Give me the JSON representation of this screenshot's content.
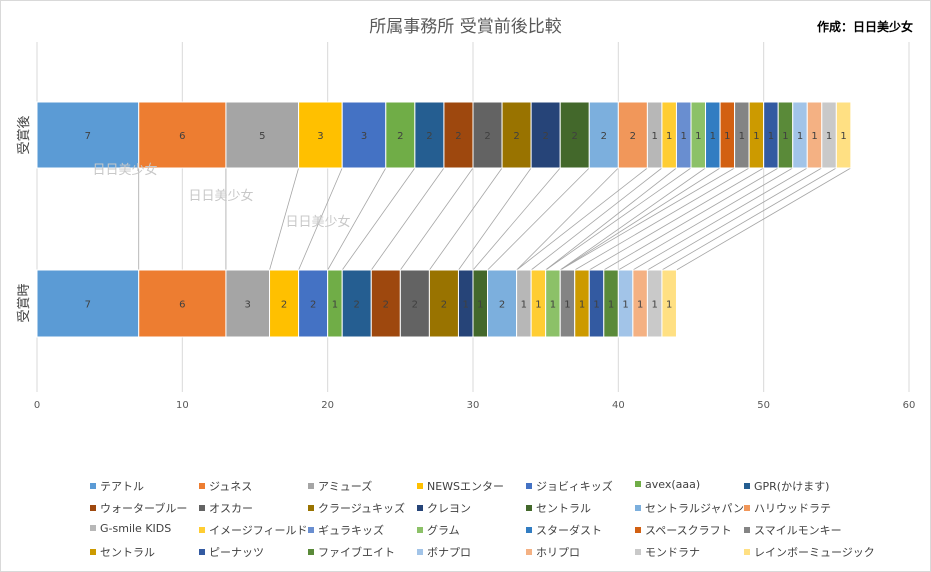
{
  "title": "所属事務所 受賞前後比較",
  "author_label": "作成：日日美少女",
  "watermarks": [
    "日日美少女",
    "日日美少女",
    "日日美少女"
  ],
  "chart_data": {
    "type": "bar",
    "orientation": "horizontal",
    "stacked": true,
    "categories": [
      "受賞後",
      "受賞時"
    ],
    "xlim": [
      0,
      60
    ],
    "xticks": [
      0,
      10,
      20,
      30,
      40,
      50,
      60
    ],
    "grid": true,
    "legend_position": "bottom",
    "series": [
      {
        "name": "テアトル",
        "color": "#5b9bd5",
        "values": [
          7,
          7
        ]
      },
      {
        "name": "ジュネス",
        "color": "#ed7d31",
        "values": [
          6,
          6
        ]
      },
      {
        "name": "アミューズ",
        "color": "#a5a5a5",
        "values": [
          5,
          3
        ]
      },
      {
        "name": "NEWSエンター",
        "color": "#ffc000",
        "values": [
          3,
          2
        ]
      },
      {
        "name": "ジョビィキッズ",
        "color": "#4472c4",
        "values": [
          3,
          2
        ]
      },
      {
        "name": "avex(aaa)",
        "color": "#70ad47",
        "values": [
          2,
          1
        ]
      },
      {
        "name": "GPR(かけます)",
        "color": "#255e91",
        "values": [
          2,
          2
        ]
      },
      {
        "name": "ウォーターブルー",
        "color": "#9e480e",
        "values": [
          2,
          2
        ]
      },
      {
        "name": "オスカー",
        "color": "#636363",
        "values": [
          2,
          2
        ]
      },
      {
        "name": "クラージュキッズ",
        "color": "#997300",
        "values": [
          2,
          2
        ]
      },
      {
        "name": "クレヨン",
        "color": "#264478",
        "values": [
          2,
          1
        ]
      },
      {
        "name": "セントラル",
        "color": "#43682b",
        "values": [
          2,
          1
        ]
      },
      {
        "name": "セントラルジャパン",
        "color": "#7cafdd",
        "values": [
          2,
          2
        ]
      },
      {
        "name": "ハリウッドラテ",
        "color": "#f1975a",
        "values": [
          2,
          0
        ]
      },
      {
        "name": "G-smile KIDS",
        "color": "#b7b7b7",
        "values": [
          1,
          1
        ]
      },
      {
        "name": "イメージフィールド",
        "color": "#ffcd33",
        "values": [
          1,
          1
        ]
      },
      {
        "name": "ギュラキッズ",
        "color": "#698ed0",
        "values": [
          1,
          0
        ]
      },
      {
        "name": "グラム",
        "color": "#8cc168",
        "values": [
          1,
          1
        ]
      },
      {
        "name": "スターダスト",
        "color": "#327dc2",
        "values": [
          1,
          0
        ]
      },
      {
        "name": "スペースクラフト",
        "color": "#d26012",
        "values": [
          1,
          0
        ]
      },
      {
        "name": "スマイルモンキー",
        "color": "#848484",
        "values": [
          1,
          1
        ]
      },
      {
        "name": "セントラル",
        "color": "#cc9a00",
        "values": [
          1,
          1
        ]
      },
      {
        "name": "ピーナッツ",
        "color": "#335aa1",
        "values": [
          1,
          1
        ]
      },
      {
        "name": "ファイブエイト",
        "color": "#5a8a39",
        "values": [
          1,
          1
        ]
      },
      {
        "name": "ボナプロ",
        "color": "#a2c4e8",
        "values": [
          1,
          1
        ]
      },
      {
        "name": "ホリプロ",
        "color": "#f4b183",
        "values": [
          1,
          1
        ]
      },
      {
        "name": "モンドラナ",
        "color": "#c9c9c9",
        "values": [
          1,
          1
        ]
      },
      {
        "name": "レインボーミュージック",
        "color": "#ffe083",
        "values": [
          1,
          1
        ]
      }
    ]
  }
}
